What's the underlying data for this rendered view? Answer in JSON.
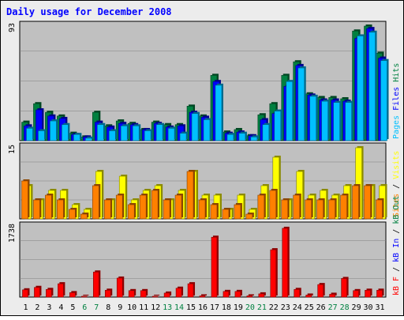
{
  "title": "Daily usage for December 2008",
  "colors": {
    "background": "#ececec",
    "plot_bg": "#c0c0c0",
    "title": "#0000ff",
    "hits": "#008040",
    "files": "#0000ff",
    "pages": "#00c0ff",
    "visits": "#ffff00",
    "sites": "#ff8000",
    "kb_f": "#ff0000",
    "kb_in": "#0000ff",
    "kb_out": "#008040",
    "weekday_label": "#000000",
    "weekend_label": "#008040"
  },
  "chart_data": [
    {
      "type": "bar",
      "panel": "hits-files-pages",
      "y_tick_label": "93",
      "ylim": [
        0,
        93
      ],
      "legend": [
        "Pages",
        "Files",
        "Hits"
      ],
      "categories": [
        "1",
        "2",
        "3",
        "4",
        "5",
        "6",
        "7",
        "8",
        "9",
        "10",
        "11",
        "12",
        "13",
        "14",
        "15",
        "16",
        "17",
        "18",
        "19",
        "20",
        "21",
        "22",
        "23",
        "24",
        "25",
        "26",
        "27",
        "28",
        "29",
        "30",
        "31"
      ],
      "series": [
        {
          "name": "Hits",
          "values": [
            15,
            30,
            23,
            20,
            6,
            3,
            23,
            12,
            16,
            14,
            9,
            15,
            13,
            13,
            28,
            20,
            53,
            7,
            9,
            4,
            21,
            30,
            53,
            64,
            38,
            35,
            35,
            34,
            89,
            93,
            71
          ]
        },
        {
          "name": "Files",
          "values": [
            12,
            25,
            20,
            18,
            5,
            3,
            15,
            11,
            14,
            13,
            9,
            14,
            11,
            12,
            23,
            19,
            48,
            6,
            7,
            4,
            17,
            22,
            44,
            61,
            37,
            33,
            33,
            32,
            83,
            91,
            67
          ]
        },
        {
          "name": "Pages",
          "values": [
            10,
            8,
            16,
            13,
            5,
            2,
            13,
            8,
            12,
            12,
            8,
            13,
            10,
            6,
            22,
            17,
            45,
            5,
            6,
            3,
            13,
            24,
            48,
            59,
            36,
            32,
            31,
            31,
            85,
            88,
            65
          ]
        }
      ]
    },
    {
      "type": "bar",
      "panel": "visits-sites",
      "y_tick_label": "15",
      "ylim": [
        0,
        15
      ],
      "legend": [
        "Sites",
        "/",
        "Visits"
      ],
      "categories": [
        "1",
        "2",
        "3",
        "4",
        "5",
        "6",
        "7",
        "8",
        "9",
        "10",
        "11",
        "12",
        "13",
        "14",
        "15",
        "16",
        "17",
        "18",
        "19",
        "20",
        "21",
        "22",
        "23",
        "24",
        "25",
        "26",
        "27",
        "28",
        "29",
        "30",
        "31"
      ],
      "series": [
        {
          "name": "Visits",
          "values": [
            7,
            4,
            6,
            6,
            3,
            2,
            10,
            4,
            9,
            4,
            6,
            7,
            4,
            6,
            10,
            5,
            5,
            2,
            5,
            2,
            7,
            13,
            4,
            10,
            5,
            6,
            5,
            7,
            15,
            7,
            7
          ]
        },
        {
          "name": "Sites",
          "values": [
            8,
            4,
            5,
            4,
            2,
            1,
            7,
            4,
            5,
            3,
            5,
            6,
            4,
            5,
            10,
            4,
            3,
            2,
            3,
            1,
            5,
            6,
            4,
            5,
            4,
            4,
            4,
            5,
            7,
            7,
            4
          ]
        }
      ]
    },
    {
      "type": "bar",
      "panel": "kbytes",
      "y_tick_label": "1738",
      "ylim": [
        0,
        1738
      ],
      "legend": [
        "kB F",
        "/",
        "kB In",
        "/",
        "kB Out"
      ],
      "categories": [
        "1",
        "2",
        "3",
        "4",
        "5",
        "6",
        "7",
        "8",
        "9",
        "10",
        "11",
        "12",
        "13",
        "14",
        "15",
        "16",
        "17",
        "18",
        "19",
        "20",
        "21",
        "22",
        "23",
        "24",
        "25",
        "26",
        "27",
        "28",
        "29",
        "30",
        "31"
      ],
      "series": [
        {
          "name": "kB F",
          "values": [
            180,
            240,
            190,
            330,
            110,
            20,
            620,
            170,
            470,
            160,
            160,
            20,
            100,
            220,
            330,
            30,
            1480,
            140,
            140,
            30,
            80,
            1170,
            1700,
            190,
            50,
            310,
            70,
            460,
            160,
            170,
            170
          ]
        },
        {
          "name": "kB In",
          "values": [
            0,
            0,
            0,
            0,
            0,
            0,
            0,
            0,
            0,
            0,
            0,
            0,
            0,
            0,
            0,
            0,
            0,
            0,
            0,
            0,
            0,
            0,
            0,
            0,
            0,
            0,
            0,
            0,
            0,
            0,
            0
          ]
        },
        {
          "name": "kB Out",
          "values": [
            0,
            0,
            0,
            0,
            0,
            0,
            0,
            0,
            0,
            0,
            0,
            0,
            0,
            0,
            0,
            0,
            0,
            0,
            0,
            0,
            0,
            0,
            0,
            0,
            0,
            0,
            0,
            0,
            0,
            0,
            0
          ]
        }
      ]
    }
  ],
  "weekend_days": [
    "6",
    "7",
    "13",
    "14",
    "20",
    "21",
    "27",
    "28"
  ]
}
